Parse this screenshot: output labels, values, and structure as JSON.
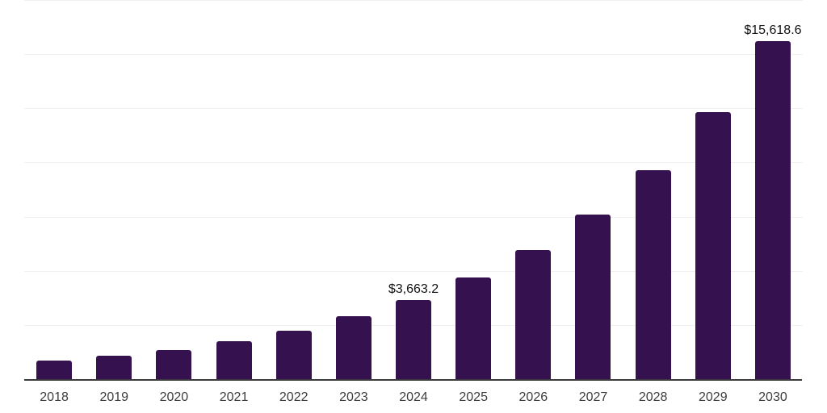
{
  "chart_data": {
    "type": "bar",
    "categories": [
      "2018",
      "2019",
      "2020",
      "2021",
      "2022",
      "2023",
      "2024",
      "2025",
      "2026",
      "2027",
      "2028",
      "2029",
      "2030"
    ],
    "values": [
      850,
      1075,
      1330,
      1765,
      2235,
      2890,
      3663.2,
      4680,
      5960,
      7595,
      9655,
      12315,
      15618.6
    ],
    "data_labels": [
      {
        "category": "2024",
        "text": "$3,663.2"
      },
      {
        "category": "2030",
        "text": "$15,618.6"
      }
    ],
    "title": "",
    "xlabel": "",
    "ylabel": "",
    "ylim": [
      0,
      17500
    ],
    "gridline_step": 2500,
    "grid": true,
    "legend": false,
    "colors": {
      "bar": "#361150",
      "axis_line": "#3a3a3a",
      "gridline": "#f0f0f0",
      "tick_label": "#3d3d3d",
      "data_label": "#111111",
      "background": "#ffffff"
    }
  }
}
